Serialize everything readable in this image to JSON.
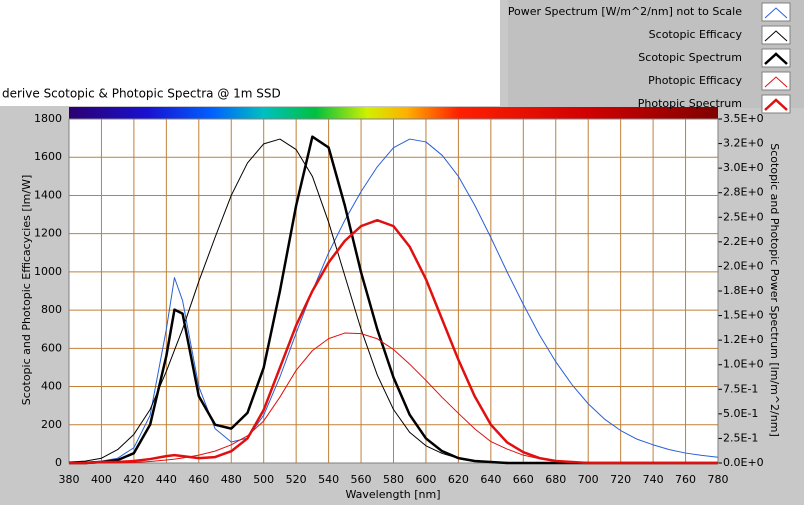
{
  "chart_data": {
    "type": "line",
    "title": "derive Scotopic & Photopic Spectra @ 1m SSD",
    "x_label": "Wavelength [nm]",
    "y_label": "Scotopic and Photopic Efficacycies [lm/W]",
    "y2_label": "Scotopic and Photopic Power Spectrum [lm/m^2/nm]",
    "x": [
      380,
      390,
      400,
      410,
      420,
      430,
      440,
      445,
      450,
      460,
      470,
      480,
      490,
      500,
      510,
      520,
      530,
      540,
      550,
      560,
      570,
      580,
      590,
      600,
      610,
      620,
      630,
      640,
      650,
      660,
      670,
      680,
      690,
      700,
      710,
      720,
      730,
      740,
      750,
      760,
      770,
      780
    ],
    "series": [
      {
        "name": "Power Spectrum [W/m^2/nm] not to Scale",
        "color": "#2a5fd8",
        "width": 1,
        "values": [
          5,
          5,
          10,
          25,
          80,
          250,
          700,
          970,
          850,
          400,
          180,
          110,
          130,
          250,
          450,
          680,
          900,
          1100,
          1270,
          1420,
          1550,
          1650,
          1695,
          1680,
          1610,
          1500,
          1350,
          1180,
          1000,
          830,
          670,
          530,
          410,
          310,
          230,
          170,
          125,
          95,
          70,
          52,
          40,
          30
        ]
      },
      {
        "name": "Scotopic Efficacy",
        "color": "#000000",
        "width": 1,
        "values": [
          5,
          10,
          25,
          70,
          150,
          280,
          480,
          590,
          700,
          950,
          1180,
          1400,
          1570,
          1670,
          1695,
          1640,
          1500,
          1260,
          980,
          700,
          460,
          280,
          160,
          90,
          50,
          25,
          12,
          6,
          3,
          1,
          0,
          0,
          0,
          0,
          0,
          0,
          0,
          0,
          0,
          0,
          0,
          0
        ]
      },
      {
        "name": "Scotopic Spectrum",
        "color": "#000000",
        "width": 2.5,
        "axis": "y2",
        "values": [
          0,
          0,
          0.01,
          0.03,
          0.1,
          0.39,
          1.09,
          1.56,
          1.52,
          0.68,
          0.39,
          0.35,
          0.51,
          0.97,
          1.75,
          2.62,
          3.32,
          3.21,
          2.62,
          1.94,
          1.36,
          0.87,
          0.49,
          0.25,
          0.12,
          0.05,
          0.02,
          0.01,
          0,
          0,
          0,
          0,
          0,
          0,
          0,
          0,
          0,
          0,
          0,
          0,
          0,
          0
        ]
      },
      {
        "name": "Photopic Efficacy",
        "color": "#e01010",
        "width": 1,
        "values": [
          0,
          0,
          0.3,
          0.8,
          2.7,
          7.9,
          15.7,
          20,
          26,
          41,
          62,
          95,
          142,
          220,
          345,
          485,
          588,
          651,
          680,
          677,
          650,
          594,
          517,
          432,
          343,
          260,
          179,
          112,
          73,
          41,
          22,
          12,
          6,
          3,
          1.6,
          0.7,
          0.3,
          0.2,
          0.1,
          0,
          0,
          0
        ]
      },
      {
        "name": "Photopic Spectrum",
        "color": "#e01010",
        "width": 2.5,
        "axis": "y2",
        "values": [
          0,
          0,
          0.01,
          0.01,
          0.02,
          0.04,
          0.07,
          0.08,
          0.07,
          0.05,
          0.06,
          0.12,
          0.25,
          0.54,
          0.97,
          1.4,
          1.75,
          2.04,
          2.26,
          2.41,
          2.47,
          2.41,
          2.2,
          1.87,
          1.46,
          1.05,
          0.68,
          0.39,
          0.21,
          0.11,
          0.05,
          0.02,
          0.01,
          0,
          0,
          0,
          0,
          0,
          0,
          0,
          0,
          0
        ]
      }
    ],
    "xlim": [
      380,
      780
    ],
    "xticks": [
      380,
      400,
      420,
      440,
      460,
      480,
      500,
      520,
      540,
      560,
      580,
      600,
      620,
      640,
      660,
      680,
      700,
      720,
      740,
      760,
      780
    ],
    "ylim": [
      0,
      1800
    ],
    "yticks": [
      0,
      200,
      400,
      600,
      800,
      1000,
      1200,
      1400,
      1600,
      1800
    ],
    "y2lim": [
      0,
      3.5
    ],
    "y2ticks": [
      {
        "value": 0,
        "label": "0.0E+0"
      },
      {
        "value": 0.25,
        "label": "2.5E-1"
      },
      {
        "value": 0.5,
        "label": "5.0E-1"
      },
      {
        "value": 0.75,
        "label": "7.5E-1"
      },
      {
        "value": 1,
        "label": "1.0E+0"
      },
      {
        "value": 1.25,
        "label": "1.2E+0"
      },
      {
        "value": 1.5,
        "label": "1.5E+0"
      },
      {
        "value": 1.75,
        "label": "1.8E+0"
      },
      {
        "value": 2,
        "label": "2.0E+0"
      },
      {
        "value": 2.25,
        "label": "2.2E+0"
      },
      {
        "value": 2.5,
        "label": "2.5E+0"
      },
      {
        "value": 2.75,
        "label": "2.8E+0"
      },
      {
        "value": 3,
        "label": "3.0E+0"
      },
      {
        "value": 3.25,
        "label": "3.2E+0"
      },
      {
        "value": 3.5,
        "label": "3.5E+0"
      }
    ],
    "grid": true,
    "grid_color": "#c0803a",
    "legend": "top-right"
  }
}
